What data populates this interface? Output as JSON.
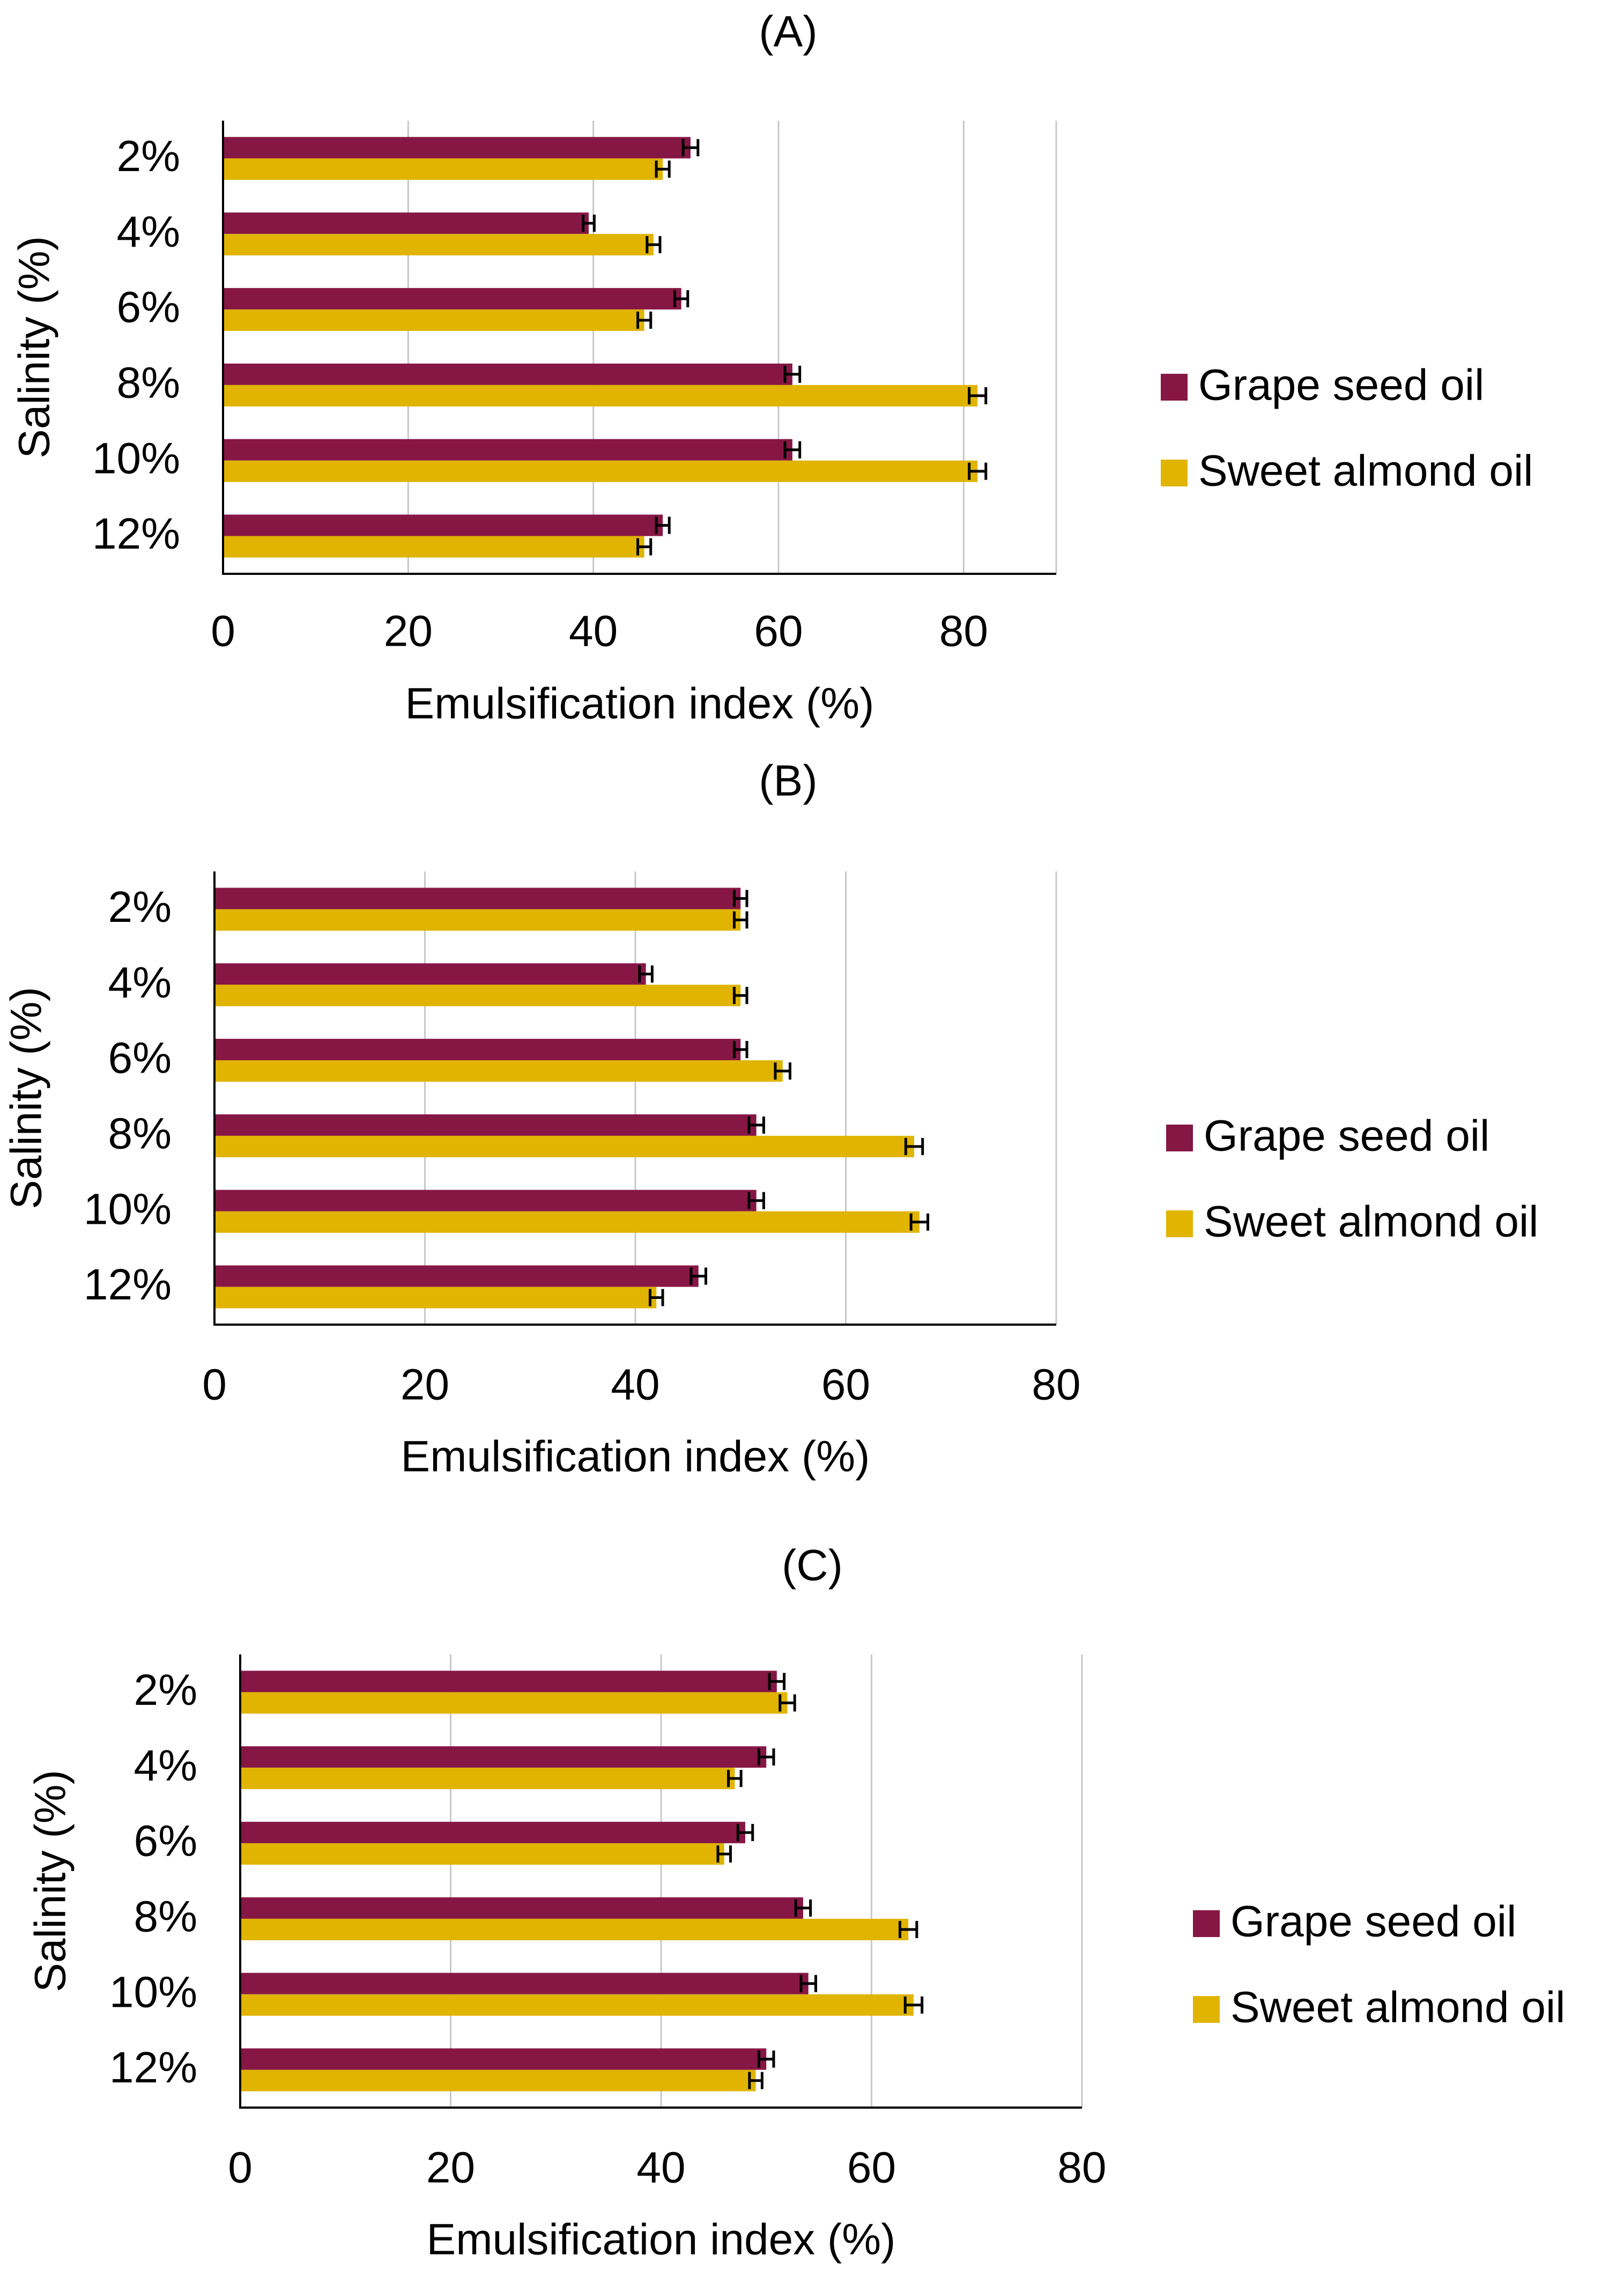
{
  "chart_data": [
    {
      "type": "bar",
      "orientation": "horizontal",
      "panel_label": "(A)",
      "title": "",
      "xlabel": "Emulsification index (%)",
      "ylabel": "Salinity (%)",
      "xlim": [
        0,
        90
      ],
      "xticks": [
        0,
        20,
        40,
        60,
        80
      ],
      "grid": "vertical",
      "legend_position": "right",
      "categories": [
        "2%",
        "4%",
        "6%",
        "8%",
        "10%",
        "12%"
      ],
      "series": [
        {
          "name": "Grape seed oil",
          "color": "#861745",
          "values": [
            50.5,
            39.5,
            49.5,
            61.5,
            61.5,
            47.5
          ],
          "errors": [
            0.8,
            0.6,
            0.7,
            0.8,
            0.8,
            0.7
          ]
        },
        {
          "name": "Sweet almond oil",
          "color": "#e0b400",
          "values": [
            47.5,
            46.5,
            45.5,
            81.5,
            81.5,
            45.5
          ],
          "errors": [
            0.7,
            0.7,
            0.7,
            0.9,
            0.9,
            0.7
          ]
        }
      ]
    },
    {
      "type": "bar",
      "orientation": "horizontal",
      "panel_label": "(B)",
      "title": "",
      "xlabel": "Emulsification index (%)",
      "ylabel": "Salinity (%)",
      "xlim": [
        0,
        80
      ],
      "xticks": [
        0,
        20,
        40,
        60,
        80
      ],
      "grid": "vertical",
      "legend_position": "right",
      "categories": [
        "2%",
        "4%",
        "6%",
        "8%",
        "10%",
        "12%"
      ],
      "series": [
        {
          "name": "Grape seed oil",
          "color": "#861745",
          "values": [
            50.0,
            41.0,
            50.0,
            51.5,
            51.5,
            46.0
          ],
          "errors": [
            0.6,
            0.6,
            0.6,
            0.7,
            0.7,
            0.7
          ]
        },
        {
          "name": "Sweet almond oil",
          "color": "#e0b400",
          "values": [
            50.0,
            50.0,
            54.0,
            66.5,
            67.0,
            42.0
          ],
          "errors": [
            0.6,
            0.6,
            0.7,
            0.8,
            0.8,
            0.6
          ]
        }
      ]
    },
    {
      "type": "bar",
      "orientation": "horizontal",
      "panel_label": "(C)",
      "title": "",
      "xlabel": "Emulsification index (%)",
      "ylabel": "Salinity (%)",
      "xlim": [
        0,
        80
      ],
      "xticks": [
        0,
        20,
        40,
        60,
        80
      ],
      "grid": "vertical",
      "legend_position": "right",
      "categories": [
        "2%",
        "4%",
        "6%",
        "8%",
        "10%",
        "12%"
      ],
      "series": [
        {
          "name": "Grape seed oil",
          "color": "#861745",
          "values": [
            51.0,
            50.0,
            48.0,
            53.5,
            54.0,
            50.0
          ],
          "errors": [
            0.7,
            0.7,
            0.7,
            0.7,
            0.7,
            0.7
          ]
        },
        {
          "name": "Sweet almond oil",
          "color": "#e0b400",
          "values": [
            52.0,
            47.0,
            46.0,
            63.5,
            64.0,
            49.0
          ],
          "errors": [
            0.7,
            0.6,
            0.6,
            0.8,
            0.8,
            0.6
          ]
        }
      ]
    }
  ]
}
